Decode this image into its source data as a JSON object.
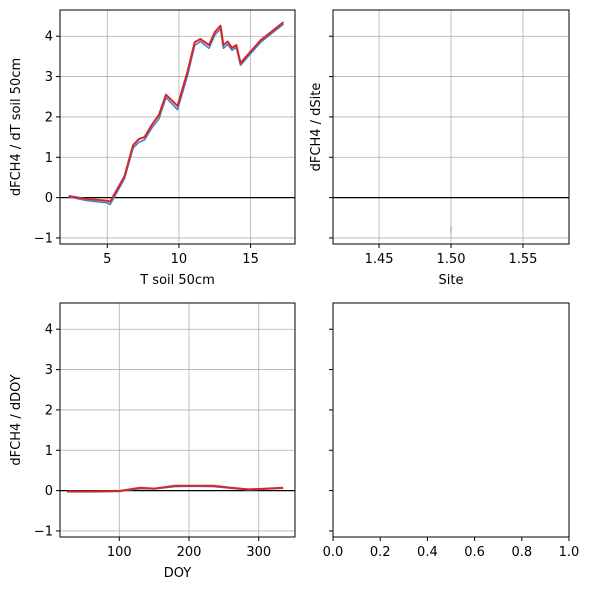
{
  "chart_data": [
    {
      "type": "line",
      "xlabel": "T soil 50cm",
      "ylabel": "dFCH4 / dT soil 50cm",
      "xlim": [
        1.7,
        18.1
      ],
      "ylim": [
        -1.15,
        4.65
      ],
      "xticks": [
        5,
        10,
        15
      ],
      "xtick_labels": [
        "5",
        "10",
        "15"
      ],
      "yticks": [
        -1,
        0,
        1,
        2,
        3,
        4
      ],
      "ytick_labels": [
        "−1",
        "0",
        "1",
        "2",
        "3",
        "4"
      ],
      "grid": true,
      "zero_line": true,
      "series": [
        {
          "color": "#4a7fc8",
          "x": [
            2.3,
            3.5,
            5.0,
            5.2,
            6.2,
            6.8,
            7.2,
            7.6,
            8.1,
            8.6,
            9.1,
            9.9,
            10.6,
            11.1,
            11.5,
            12.1,
            12.5,
            12.9,
            13.1,
            13.4,
            13.7,
            14.0,
            14.3,
            15.0,
            15.7,
            17.3
          ],
          "y": [
            0.02,
            -0.07,
            -0.13,
            -0.17,
            0.47,
            1.23,
            1.37,
            1.43,
            1.72,
            1.95,
            2.48,
            2.18,
            3.02,
            3.77,
            3.87,
            3.7,
            4.03,
            4.18,
            3.7,
            3.8,
            3.65,
            3.72,
            3.28,
            3.57,
            3.85,
            4.3
          ]
        },
        {
          "color": "#d62728",
          "x": [
            2.3,
            3.5,
            5.0,
            5.2,
            6.2,
            6.8,
            7.2,
            7.6,
            8.1,
            8.6,
            9.1,
            9.9,
            10.6,
            11.1,
            11.5,
            12.1,
            12.5,
            12.9,
            13.1,
            13.4,
            13.7,
            14.0,
            14.3,
            15.0,
            15.7,
            17.3
          ],
          "y": [
            0.04,
            -0.03,
            -0.08,
            -0.1,
            0.53,
            1.3,
            1.45,
            1.5,
            1.8,
            2.05,
            2.55,
            2.27,
            3.12,
            3.85,
            3.93,
            3.78,
            4.1,
            4.26,
            3.78,
            3.87,
            3.71,
            3.78,
            3.34,
            3.62,
            3.9,
            4.35
          ]
        }
      ]
    },
    {
      "type": "line",
      "xlabel": "Site",
      "ylabel": "dFCH4 / dSite",
      "xlim": [
        1.418,
        1.582
      ],
      "ylim": [
        -1.15,
        4.65
      ],
      "xticks": [
        1.45,
        1.5,
        1.55
      ],
      "xtick_labels": [
        "1.45",
        "1.50",
        "1.55"
      ],
      "yticks": [
        -1,
        0,
        1,
        2,
        3,
        4
      ],
      "ytick_labels": [],
      "grid": true,
      "zero_line": true,
      "series": [
        {
          "color": "#bbbbbb",
          "x": [
            1.5,
            1.5
          ],
          "y": [
            -0.7,
            -0.88
          ]
        }
      ]
    },
    {
      "type": "line",
      "xlabel": "DOY",
      "ylabel": "dFCH4 / dDOY",
      "xlim": [
        15,
        352
      ],
      "ylim": [
        -1.15,
        4.65
      ],
      "xticks": [
        100,
        200,
        300
      ],
      "xtick_labels": [
        "100",
        "200",
        "300"
      ],
      "yticks": [
        -1,
        0,
        1,
        2,
        3,
        4
      ],
      "ytick_labels": [
        "−1",
        "0",
        "1",
        "2",
        "3",
        "4"
      ],
      "grid": true,
      "zero_line": true,
      "series": [
        {
          "color": "#4a7fc8",
          "x": [
            25,
            60,
            100,
            130,
            150,
            180,
            205,
            235,
            260,
            285,
            300,
            335
          ],
          "y": [
            -0.03,
            -0.03,
            -0.02,
            0.05,
            0.04,
            0.1,
            0.11,
            0.1,
            0.06,
            0.02,
            0.03,
            0.06
          ]
        },
        {
          "color": "#d62728",
          "x": [
            25,
            60,
            100,
            130,
            150,
            180,
            205,
            235,
            260,
            285,
            300,
            335
          ],
          "y": [
            -0.02,
            -0.02,
            -0.01,
            0.07,
            0.05,
            0.12,
            0.12,
            0.12,
            0.07,
            0.03,
            0.04,
            0.07
          ]
        }
      ]
    },
    {
      "type": "line",
      "xlabel": "",
      "ylabel": "",
      "xlim": [
        0,
        1
      ],
      "ylim": [
        -1.15,
        4.65
      ],
      "xticks": [
        0,
        0.2,
        0.4,
        0.6,
        0.8,
        1.0
      ],
      "xtick_labels": [
        "0.0",
        "0.2",
        "0.4",
        "0.6",
        "0.8",
        "1.0"
      ],
      "yticks": [
        -1,
        0,
        1,
        2,
        3,
        4
      ],
      "ytick_labels": [],
      "grid": false,
      "zero_line": false,
      "series": []
    }
  ]
}
